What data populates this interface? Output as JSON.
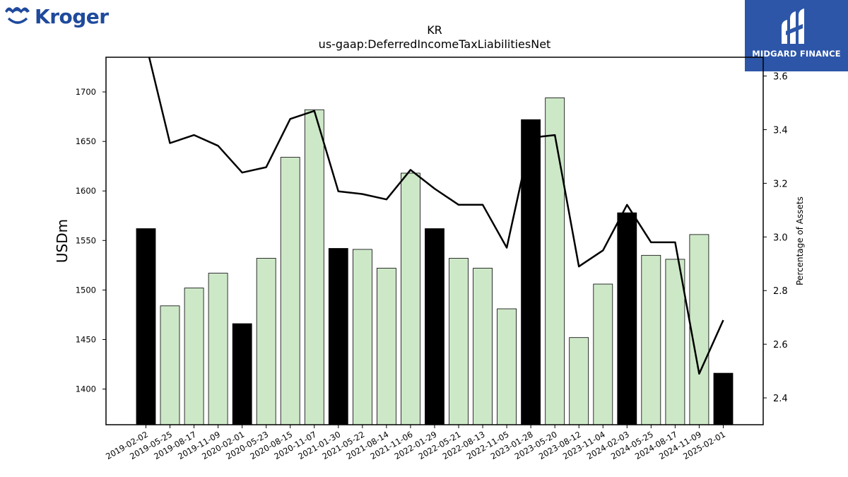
{
  "branding": {
    "left_logo_text": "Kroger",
    "right_logo_text": "MIDGARD FINANCE"
  },
  "chart_data": {
    "type": "bar",
    "title": "KR",
    "subtitle": "us-gaap:DeferredIncomeTaxLiabilitiesNet",
    "ylabel": "USDm",
    "y2label": "Percentage of Assets",
    "ylim": [
      1364,
      1735
    ],
    "y2lim": [
      2.3,
      3.67
    ],
    "yticks": [
      1400,
      1450,
      1500,
      1550,
      1600,
      1650,
      1700
    ],
    "y2ticks": [
      2.4,
      2.6,
      2.8,
      3.0,
      3.2,
      3.4,
      3.6
    ],
    "categories": [
      "2019-02-02",
      "2019-05-25",
      "2019-08-17",
      "2019-11-09",
      "2020-02-01",
      "2020-05-23",
      "2020-08-15",
      "2020-11-07",
      "2021-01-30",
      "2021-05-22",
      "2021-08-14",
      "2021-11-06",
      "2022-01-29",
      "2022-05-21",
      "2022-08-13",
      "2022-11-05",
      "2023-01-28",
      "2023-05-20",
      "2023-08-12",
      "2023-11-04",
      "2024-02-03",
      "2024-05-25",
      "2024-08-17",
      "2024-11-09",
      "2025-02-01"
    ],
    "series": [
      {
        "kind": "bar",
        "values": [
          1562,
          1484,
          1502,
          1517,
          1466,
          1532,
          1634,
          1682,
          1542,
          1541,
          1522,
          1618,
          1562,
          1532,
          1522,
          1481,
          1672,
          1694,
          1452,
          1506,
          1578,
          1535,
          1531,
          1556,
          1416
        ],
        "fiscal_year_end": [
          true,
          false,
          false,
          false,
          true,
          false,
          false,
          false,
          true,
          false,
          false,
          false,
          true,
          false,
          false,
          false,
          true,
          false,
          false,
          false,
          true,
          false,
          false,
          false,
          true
        ]
      },
      {
        "kind": "line",
        "axis": "right",
        "values": [
          3.72,
          3.35,
          3.38,
          3.34,
          3.24,
          3.26,
          3.44,
          3.47,
          3.17,
          3.16,
          3.14,
          3.25,
          3.18,
          3.12,
          3.12,
          2.96,
          3.37,
          3.38,
          2.89,
          2.95,
          3.12,
          2.98,
          2.98,
          2.49,
          2.69
        ]
      }
    ],
    "colors": {
      "bar_fiscal": "#000000",
      "bar_quarter": "#cde8c7",
      "line": "#000000"
    },
    "grid": false
  }
}
